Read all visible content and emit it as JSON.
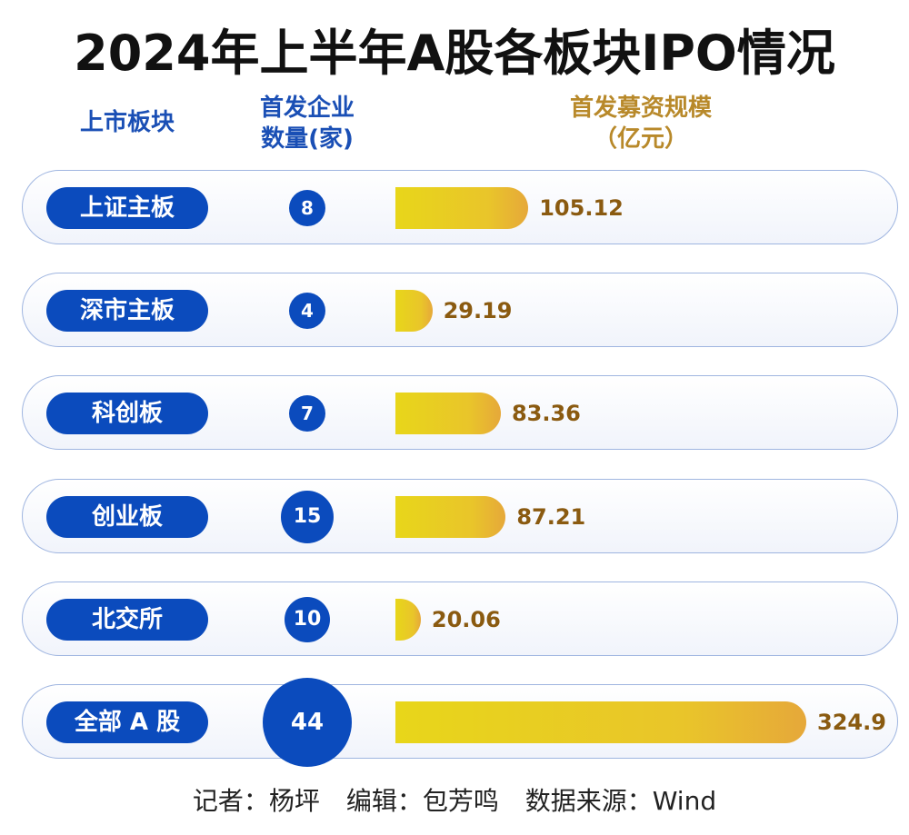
{
  "chart_data": {
    "type": "bar",
    "title": "2024年上半年A股各板块IPO情况",
    "column_headers": {
      "board": "上市板块",
      "count_line1": "首发企业",
      "count_line2": "数量(家)",
      "amount_line1": "首发募资规模",
      "amount_line2": "（亿元）"
    },
    "categories": [
      "上证主板",
      "深市主板",
      "科创板",
      "创业板",
      "北交所",
      "全部 A 股"
    ],
    "series": [
      {
        "values": [
          8,
          4,
          7,
          15,
          10,
          44
        ]
      },
      {
        "values": [
          105.12,
          29.19,
          83.36,
          87.21,
          20.06,
          324.9
        ]
      }
    ],
    "value_labels": [
      "105.12",
      "29.19",
      "83.36",
      "87.21",
      "20.06",
      "324.9"
    ]
  },
  "footer": {
    "reporter": "记者：杨坪",
    "editor": "编辑：包芳鸣",
    "source": "数据来源：Wind"
  },
  "colors": {
    "pill": "#0b4bbd",
    "bar_start": "#e8d61a",
    "bar_end": "#e6a83a",
    "value_text": "#8a5a10",
    "header_blue": "#1a4fb5",
    "header_gold": "#b8892a"
  }
}
